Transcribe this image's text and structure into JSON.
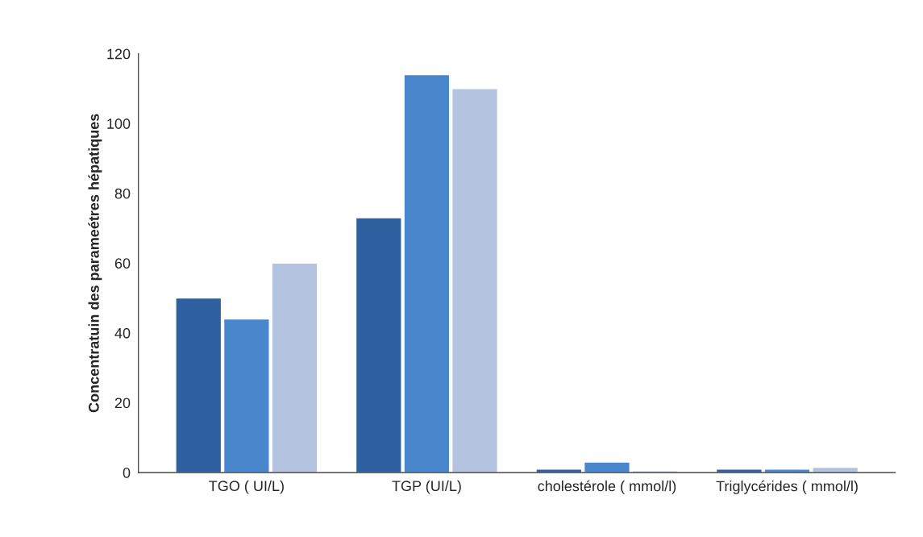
{
  "chart_data": {
    "type": "bar",
    "ylabel": "Concentratuin des parameétres hépatiques",
    "categories": [
      "TGO ( UI/L)",
      "TGP (UI/L)",
      "cholestérole ( mmol/l)",
      "Triglycérides ( mmol/l)"
    ],
    "series": [
      {
        "color": "#2e5f9e",
        "values": [
          50,
          73,
          1,
          1
        ]
      },
      {
        "color": "#4a86cc",
        "values": [
          44,
          114,
          3,
          1
        ]
      },
      {
        "color": "#b4c3e0",
        "values": [
          60,
          110,
          0.5,
          1.5
        ]
      }
    ],
    "ylim": [
      0,
      120
    ],
    "yticks": [
      0,
      20,
      40,
      60,
      80,
      100,
      120
    ],
    "grid": false,
    "legend": false
  }
}
